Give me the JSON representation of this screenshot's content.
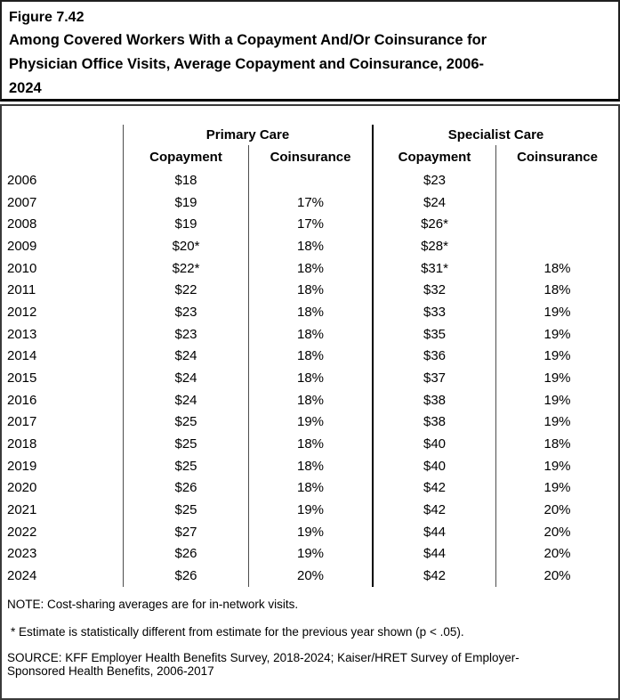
{
  "figure": {
    "label": "Figure 7.42",
    "title": "Among Covered Workers With a Copayment And/Or Coinsurance for Physician Office Visits, Average Copayment and Coinsurance, 2006-2024",
    "title_lines": [
      "Among Covered Workers With a Copayment And/Or Coinsurance for",
      "Physician Office Visits, Average Copayment and Coinsurance, 2006-",
      "2024"
    ]
  },
  "chart_data": {
    "type": "table",
    "title": "Among Covered Workers With a Copayment And/Or Coinsurance for Physician Office Visits, Average Copayment and Coinsurance, 2006-2024",
    "column_groups": [
      "Primary Care",
      "Specialist Care"
    ],
    "sub_headers": [
      "Copayment",
      "Coinsurance",
      "Copayment",
      "Coinsurance"
    ],
    "rows": [
      [
        "2006",
        "$18",
        "",
        "$23",
        ""
      ],
      [
        "2007",
        "$19",
        "17%",
        "$24",
        ""
      ],
      [
        "2008",
        "$19",
        "17%",
        "$26*",
        ""
      ],
      [
        "2009",
        "$20*",
        "18%",
        "$28*",
        ""
      ],
      [
        "2010",
        "$22*",
        "18%",
        "$31*",
        "18%"
      ],
      [
        "2011",
        "$22",
        "18%",
        "$32",
        "18%"
      ],
      [
        "2012",
        "$23",
        "18%",
        "$33",
        "19%"
      ],
      [
        "2013",
        "$23",
        "18%",
        "$35",
        "19%"
      ],
      [
        "2014",
        "$24",
        "18%",
        "$36",
        "19%"
      ],
      [
        "2015",
        "$24",
        "18%",
        "$37",
        "19%"
      ],
      [
        "2016",
        "$24",
        "18%",
        "$38",
        "19%"
      ],
      [
        "2017",
        "$25",
        "19%",
        "$38",
        "19%"
      ],
      [
        "2018",
        "$25",
        "18%",
        "$40",
        "18%"
      ],
      [
        "2019",
        "$25",
        "18%",
        "$40",
        "19%"
      ],
      [
        "2020",
        "$26",
        "18%",
        "$42",
        "19%"
      ],
      [
        "2021",
        "$25",
        "19%",
        "$42",
        "20%"
      ],
      [
        "2022",
        "$27",
        "19%",
        "$44",
        "20%"
      ],
      [
        "2023",
        "$26",
        "19%",
        "$44",
        "20%"
      ],
      [
        "2024",
        "$26",
        "20%",
        "$42",
        "20%"
      ]
    ]
  },
  "notes": {
    "note": "NOTE: Cost-sharing averages are for in-network visits.",
    "footnote": "* Estimate is statistically different from estimate for the previous year shown (p < .05).",
    "source_lines": [
      "SOURCE: KFF Employer Health Benefits Survey, 2018-2024; Kaiser/HRET Survey of Employer-",
      "Sponsored Health Benefits, 2006-2017"
    ]
  },
  "colors": {
    "text": "#000000",
    "background": "#ffffff",
    "border": "#000000"
  }
}
